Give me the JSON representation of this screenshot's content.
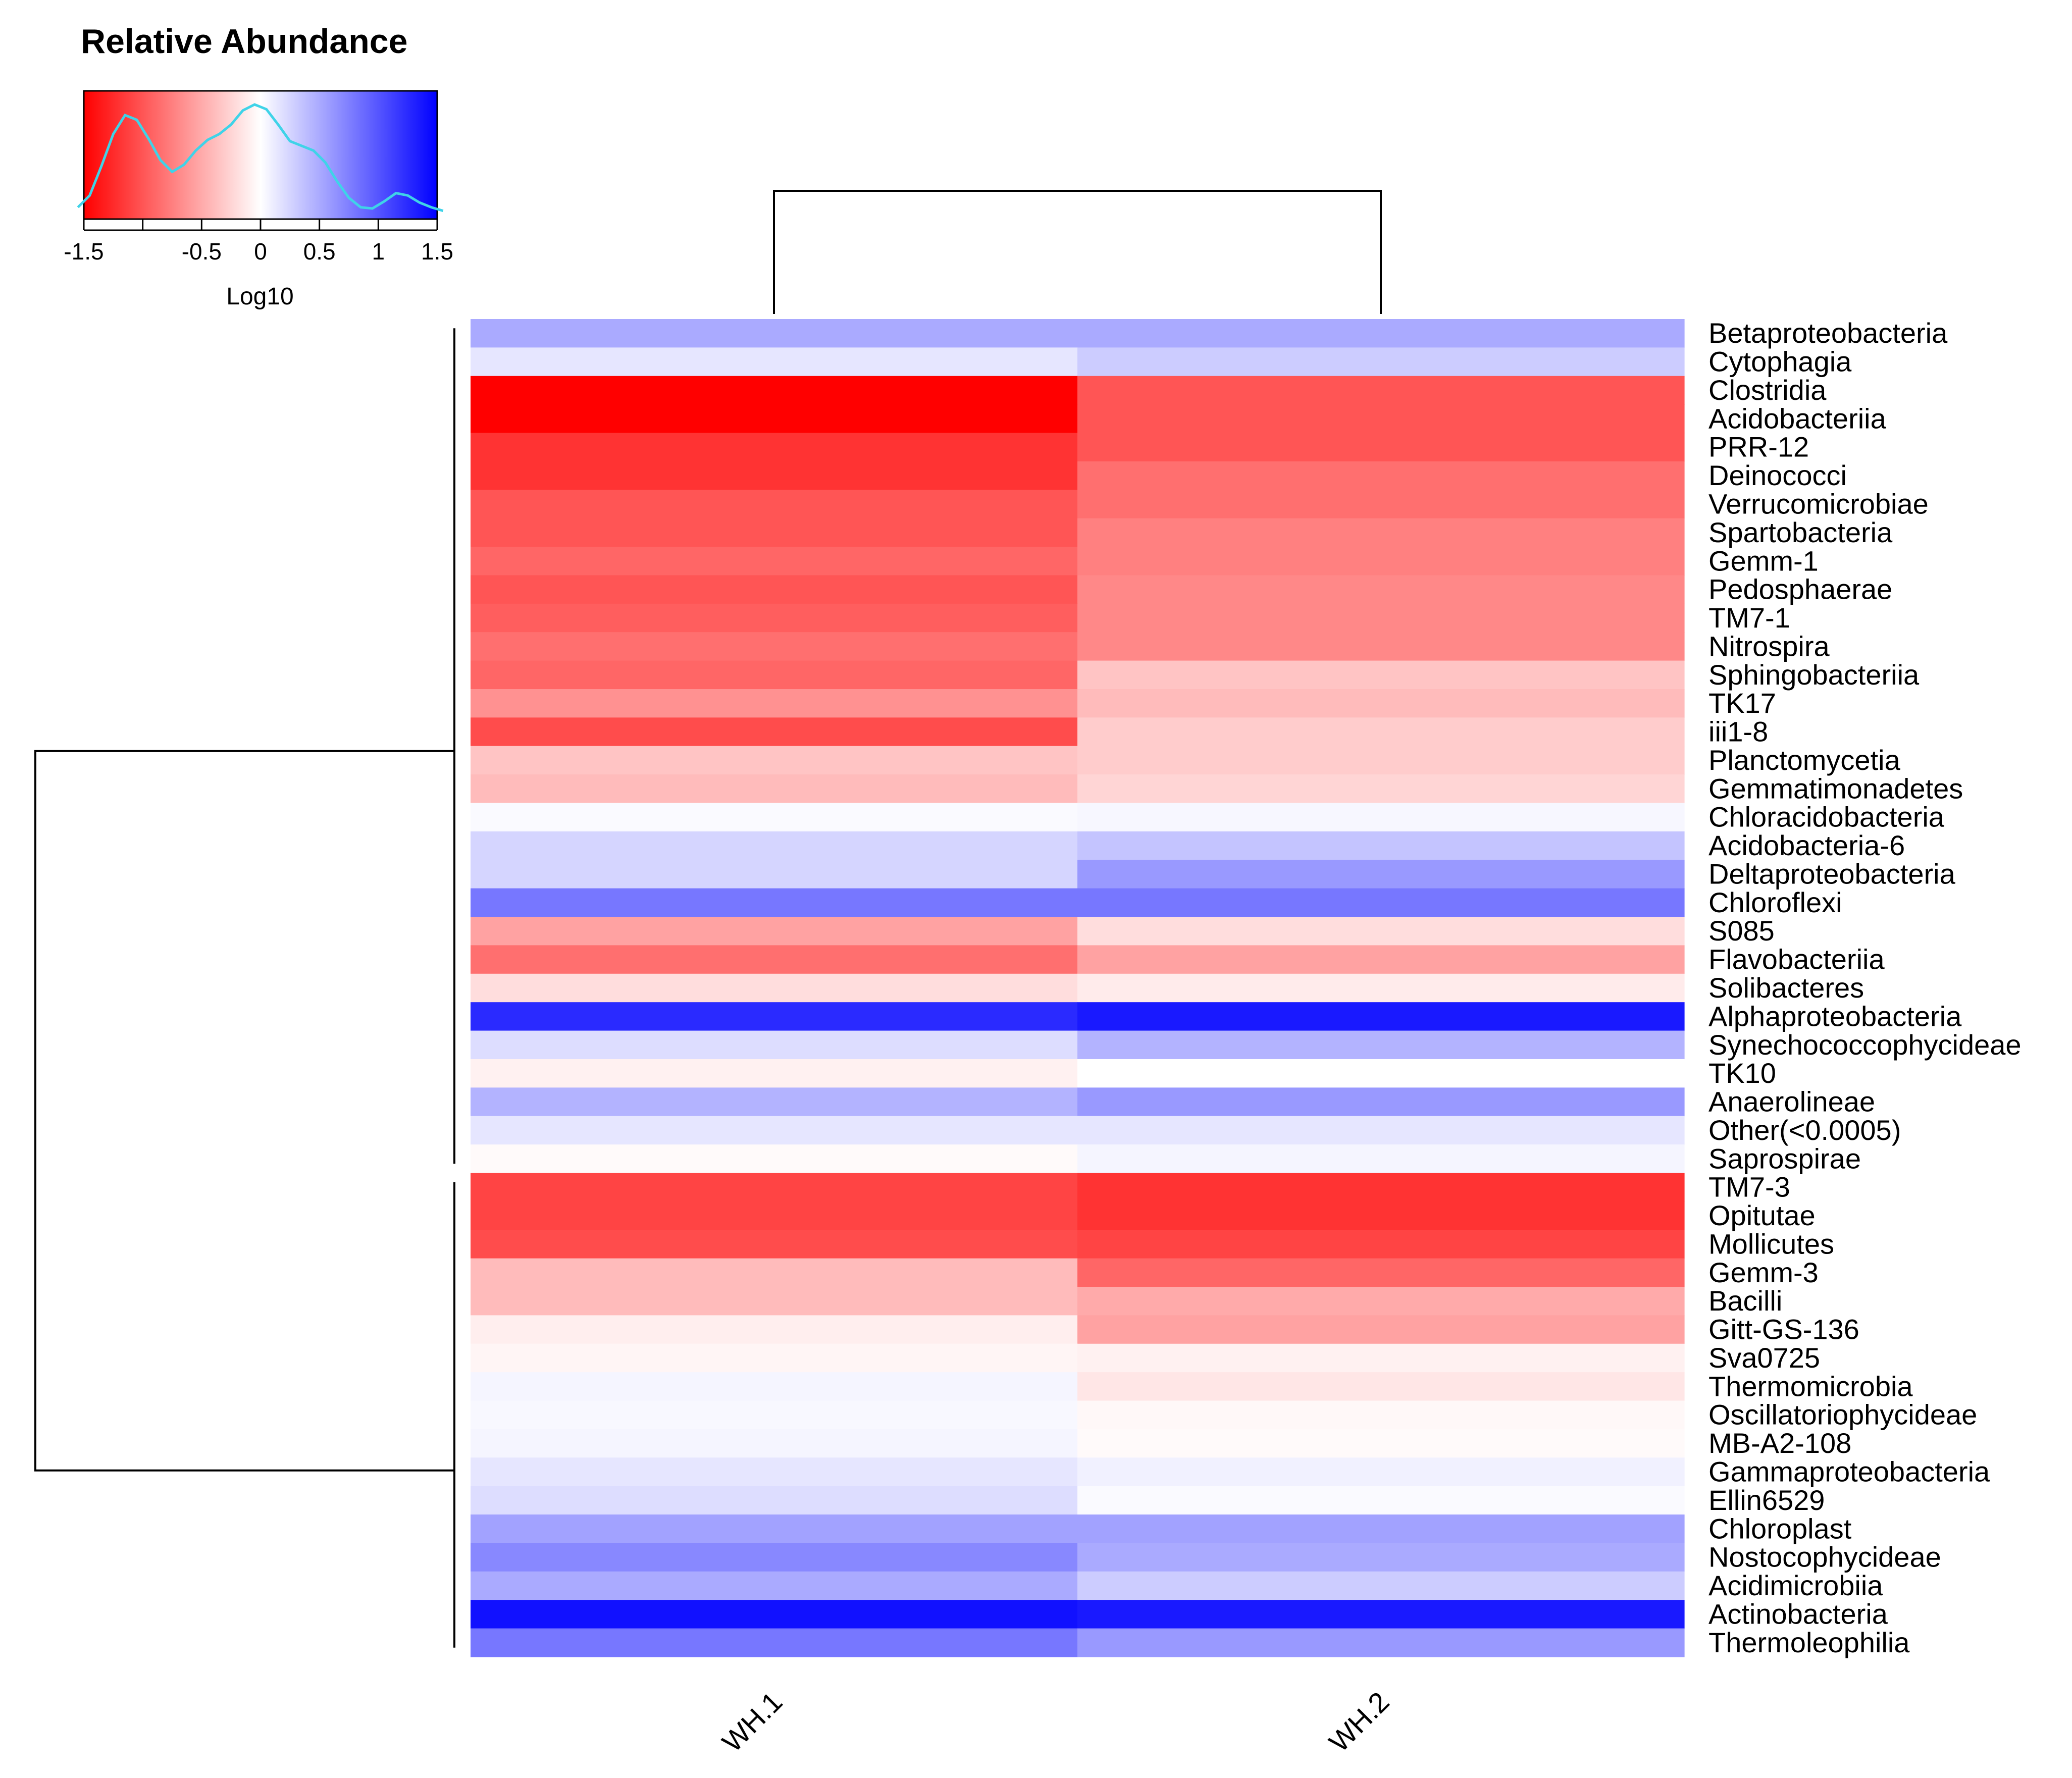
{
  "chart_data": {
    "type": "heatmap",
    "legend": {
      "title": "Relative Abundance",
      "axis_label": "Log10",
      "ticks": [
        "-1.5",
        "-0.5",
        "0",
        "0.5",
        "1",
        "1.5"
      ],
      "tick_values": [
        -1.5,
        -0.5,
        0,
        0.5,
        1,
        1.5
      ],
      "minor_ticks": [
        -1.0
      ],
      "range": [
        -1.5,
        1.5
      ],
      "colors": {
        "low": "#ff0000",
        "mid": "#ffffff",
        "high": "#0000ff",
        "density_line": "#3fd3e8"
      },
      "density": [
        [
          -1.55,
          0.1
        ],
        [
          -1.45,
          0.2
        ],
        [
          -1.35,
          0.45
        ],
        [
          -1.25,
          0.72
        ],
        [
          -1.15,
          0.88
        ],
        [
          -1.05,
          0.84
        ],
        [
          -0.95,
          0.68
        ],
        [
          -0.85,
          0.5
        ],
        [
          -0.75,
          0.4
        ],
        [
          -0.65,
          0.46
        ],
        [
          -0.55,
          0.58
        ],
        [
          -0.45,
          0.67
        ],
        [
          -0.35,
          0.72
        ],
        [
          -0.25,
          0.8
        ],
        [
          -0.15,
          0.92
        ],
        [
          -0.05,
          0.97
        ],
        [
          0.05,
          0.93
        ],
        [
          0.15,
          0.8
        ],
        [
          0.25,
          0.66
        ],
        [
          0.35,
          0.62
        ],
        [
          0.45,
          0.58
        ],
        [
          0.55,
          0.48
        ],
        [
          0.65,
          0.32
        ],
        [
          0.75,
          0.18
        ],
        [
          0.85,
          0.1
        ],
        [
          0.95,
          0.09
        ],
        [
          1.05,
          0.15
        ],
        [
          1.15,
          0.22
        ],
        [
          1.25,
          0.2
        ],
        [
          1.35,
          0.14
        ],
        [
          1.45,
          0.1
        ],
        [
          1.55,
          0.07
        ]
      ]
    },
    "columns": [
      "WH.1",
      "WH.2"
    ],
    "rows": [
      "Betaproteobacteria",
      "Cytophagia",
      "Clostridia",
      "Acidobacteriia",
      "PRR-12",
      "Deinococci",
      "Verrucomicrobiae",
      "Spartobacteria",
      "Gemm-1",
      "Pedosphaerae",
      "TM7-1",
      "Nitrospira",
      "Sphingobacteriia",
      "TK17",
      "iii1-8",
      "Planctomycetia",
      "Gemmatimonadetes",
      "Chloracidobacteria",
      "Acidobacteria-6",
      "Deltaproteobacteria",
      "Chloroflexi",
      "S085",
      "Flavobacteriia",
      "Solibacteres",
      "Alphaproteobacteria",
      "Synechococcophycideae",
      "TK10",
      "Anaerolineae",
      "Other(<0.0005)",
      "Saprospirae",
      "TM7-3",
      "Opitutae",
      "Mollicutes",
      "Gemm-3",
      "Bacilli",
      "Gitt-GS-136",
      "Sva0725",
      "Thermomicrobia",
      "Oscillatoriophycideae",
      "MB-A2-108",
      "Gammaproteobacteria",
      "Ellin6529",
      "Chloroplast",
      "Nostocophycideae",
      "Acidimicrobiia",
      "Actinobacteria",
      "Thermoleophilia"
    ],
    "values": [
      [
        0.5,
        0.5
      ],
      [
        0.15,
        0.3
      ],
      [
        -1.5,
        -1.0
      ],
      [
        -1.5,
        -1.0
      ],
      [
        -1.2,
        -1.0
      ],
      [
        -1.2,
        -0.85
      ],
      [
        -1.0,
        -0.85
      ],
      [
        -1.0,
        -0.75
      ],
      [
        -0.9,
        -0.75
      ],
      [
        -1.0,
        -0.7
      ],
      [
        -0.95,
        -0.7
      ],
      [
        -0.85,
        -0.7
      ],
      [
        -0.9,
        -0.35
      ],
      [
        -0.65,
        -0.4
      ],
      [
        -1.05,
        -0.3
      ],
      [
        -0.35,
        -0.3
      ],
      [
        -0.4,
        -0.25
      ],
      [
        0.03,
        0.05
      ],
      [
        0.25,
        0.35
      ],
      [
        0.25,
        0.6
      ],
      [
        0.8,
        0.8
      ],
      [
        -0.55,
        -0.2
      ],
      [
        -0.85,
        -0.55
      ],
      [
        -0.2,
        -0.12
      ],
      [
        1.25,
        1.35
      ],
      [
        0.2,
        0.45
      ],
      [
        -0.08,
        0.0
      ],
      [
        0.45,
        0.6
      ],
      [
        0.15,
        0.15
      ],
      [
        -0.03,
        0.06
      ],
      [
        -1.1,
        -1.2
      ],
      [
        -1.1,
        -1.2
      ],
      [
        -1.05,
        -1.1
      ],
      [
        -0.4,
        -0.9
      ],
      [
        -0.4,
        -0.5
      ],
      [
        -0.1,
        -0.55
      ],
      [
        -0.06,
        -0.08
      ],
      [
        0.06,
        -0.15
      ],
      [
        0.04,
        -0.04
      ],
      [
        0.06,
        -0.03
      ],
      [
        0.15,
        0.08
      ],
      [
        0.2,
        0.03
      ],
      [
        0.55,
        0.55
      ],
      [
        0.7,
        0.5
      ],
      [
        0.5,
        0.3
      ],
      [
        1.4,
        1.35
      ],
      [
        0.8,
        0.6
      ]
    ],
    "column_dendrogram": {
      "merges": [
        [
          "WH.1",
          "WH.2"
        ]
      ]
    },
    "row_dendrogram": {
      "clusters": [
        [
          "Betaproteobacteria",
          "Saprospirae"
        ],
        [
          "TM7-3",
          "Thermoleophilia"
        ]
      ]
    }
  }
}
